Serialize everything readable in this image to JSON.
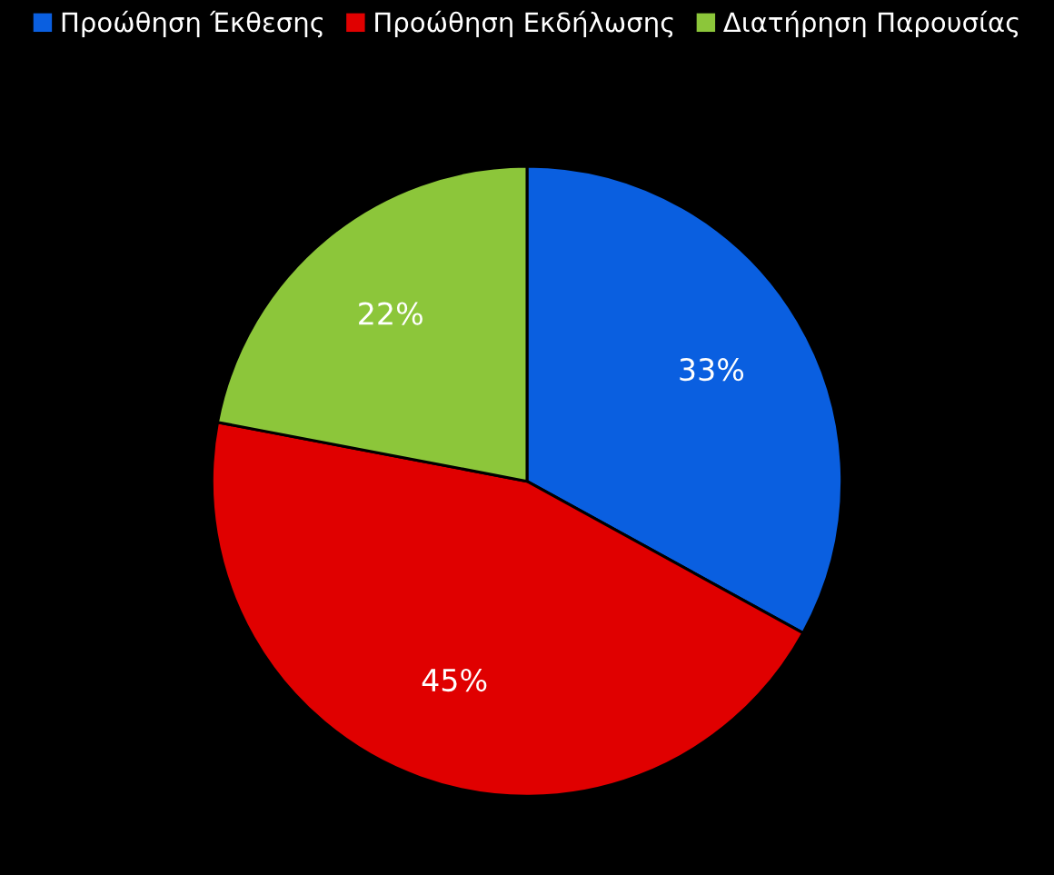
{
  "chart_data": {
    "type": "pie",
    "categories": [
      "Προώθηση Έκθεσης",
      "Προώθηση Εκδήλωσης",
      "Διατήρηση Παρουσίας"
    ],
    "values": [
      33,
      45,
      22
    ],
    "colors": [
      "#0a5fe0",
      "#e00000",
      "#8cc63a"
    ],
    "value_labels": [
      "33%",
      "45%",
      "22%"
    ],
    "legend": "top"
  }
}
